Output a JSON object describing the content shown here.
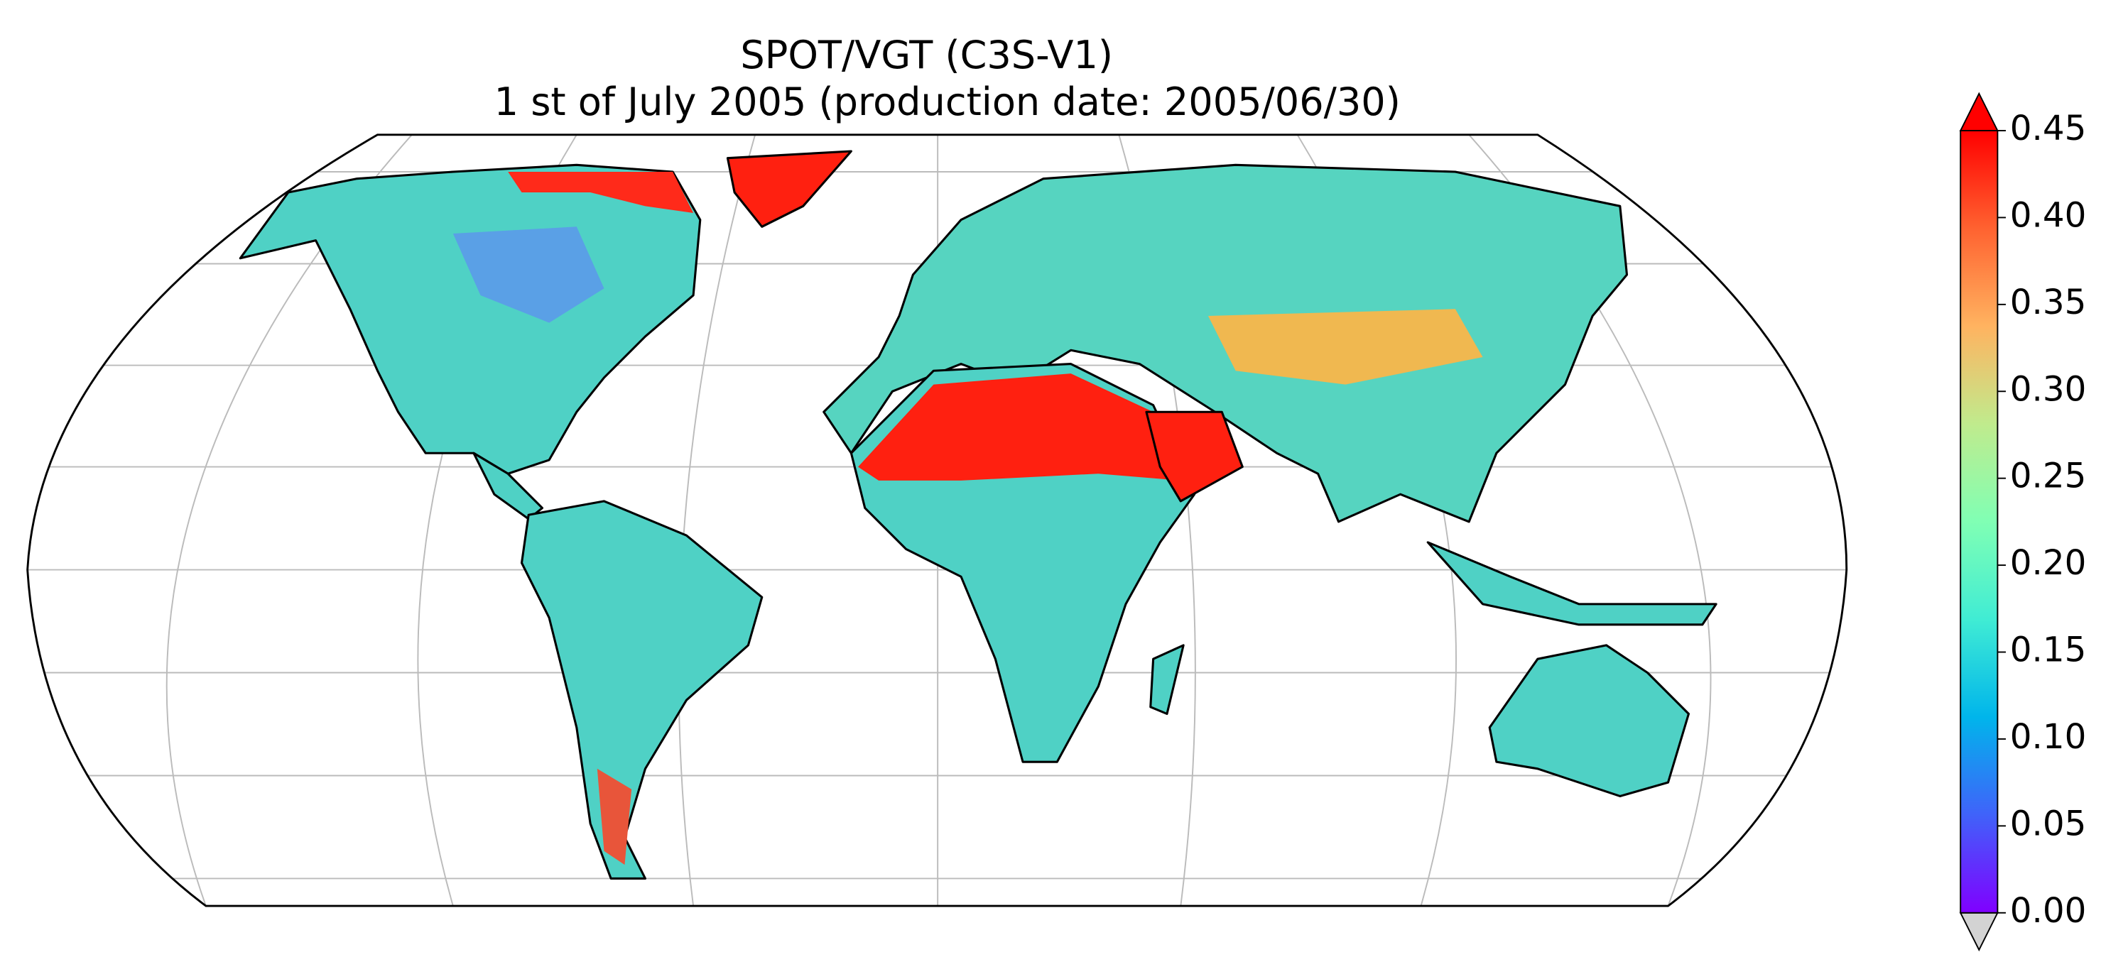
{
  "title": [
    "SPOT/VGT (C3S-V1)",
    "1 st of July 2005 (production date: 2005/06/30)"
  ],
  "colorbar": {
    "colormap": "rainbow",
    "extend": "both",
    "under_color": "#d3d3d3",
    "lim": [
      0,
      0.45
    ],
    "ticks": [
      {
        "value": 0,
        "label": "0.00"
      },
      0.05,
      {
        "value": 0.1,
        "label": "0.10"
      },
      0.15,
      {
        "value": 0.2,
        "label": "0.20"
      },
      0.25,
      {
        "value": 0.3,
        "label": "0.30"
      },
      0.35,
      {
        "value": 0.4,
        "label": "0.40"
      },
      0.45
    ]
  }
}
